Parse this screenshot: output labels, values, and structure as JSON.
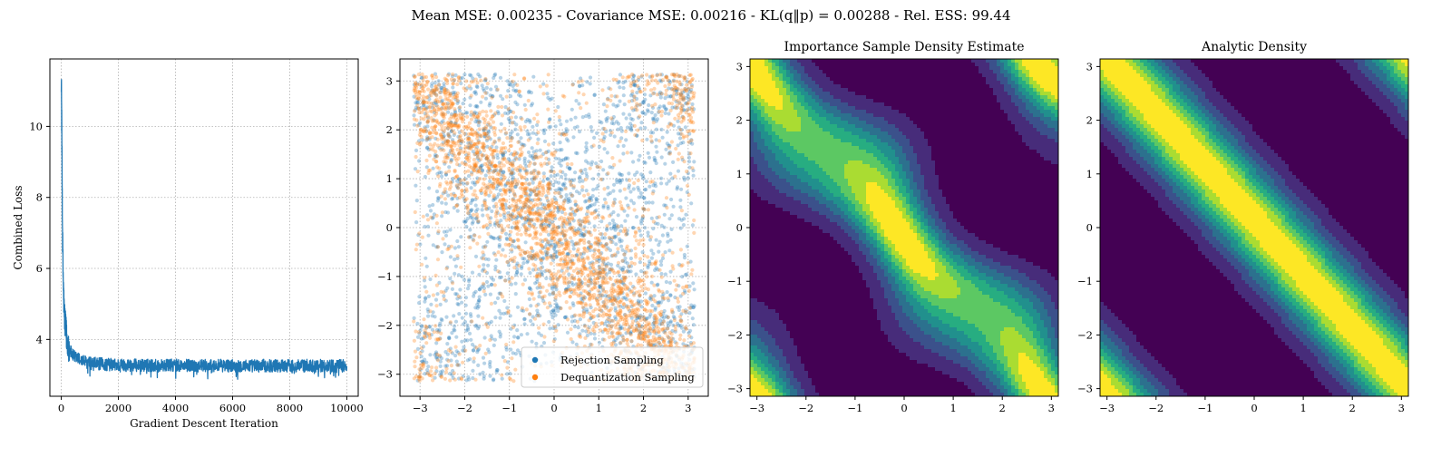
{
  "suptitle": "Mean MSE: 0.00235 - Covariance MSE: 0.00216 - KL(q‖p) = 0.00288 - Rel. ESS: 99.44",
  "colors": {
    "loss_line": "#1f77b4",
    "rejection": "#1f77b4",
    "dequantization": "#ff7f0e",
    "viridis_levels": [
      "#440154",
      "#472c7a",
      "#3b518b",
      "#2c718e",
      "#21908d",
      "#27ad81",
      "#5cc863",
      "#aadc32",
      "#fde725"
    ],
    "grid": "#b0b0b0"
  },
  "chart_data": [
    {
      "type": "line",
      "title": "",
      "xlabel": "Gradient Descent Iteration",
      "ylabel": "Combined Loss",
      "xlim": [
        -400,
        10400
      ],
      "ylim": [
        2.4,
        11.9
      ],
      "xticks": [
        0,
        2000,
        4000,
        6000,
        8000,
        10000
      ],
      "xtick_labels": [
        "0",
        "2000",
        "4000",
        "6000",
        "8000",
        "10000"
      ],
      "yticks": [
        4,
        6,
        8,
        10
      ],
      "ytick_labels": [
        "4",
        "6",
        "8",
        "10"
      ],
      "grid": true,
      "series": [
        {
          "x": [
            0,
            20,
            40,
            60,
            80,
            100,
            150,
            200,
            300,
            400,
            600,
            800,
            1000,
            1500,
            2000,
            3000,
            4000,
            5000,
            6000,
            7000,
            8000,
            9000,
            10000
          ],
          "y": [
            11.4,
            9.6,
            7.2,
            6.0,
            5.3,
            4.8,
            4.3,
            4.0,
            3.7,
            3.55,
            3.45,
            3.38,
            3.33,
            3.3,
            3.28,
            3.27,
            3.27,
            3.26,
            3.26,
            3.26,
            3.26,
            3.26,
            3.26
          ],
          "noise_band": 0.18
        }
      ]
    },
    {
      "type": "scatter",
      "title": "",
      "xlim": [
        -3.45,
        3.45
      ],
      "ylim": [
        -3.45,
        3.45
      ],
      "xticks": [
        -3,
        -2,
        -1,
        0,
        1,
        2,
        3
      ],
      "xtick_labels": [
        "−3",
        "−2",
        "−1",
        "0",
        "1",
        "2",
        "3"
      ],
      "yticks": [
        -3,
        -2,
        -1,
        0,
        1,
        2,
        3
      ],
      "ytick_labels": [
        "−3",
        "−2",
        "−1",
        "0",
        "1",
        "2",
        "3"
      ],
      "grid": true,
      "legend_position": "lower-right",
      "series": [
        {
          "name": "Rejection Sampling",
          "color": "#1f77b4",
          "count": 2200,
          "density": "diagonal bands, nearly uniform"
        },
        {
          "name": "Dequantization Sampling",
          "color": "#ff7f0e",
          "count": 2600,
          "density": "concentrated on anti-diagonal bands"
        }
      ]
    },
    {
      "type": "heatmap",
      "title": "Importance Sample Density Estimate",
      "xlim": [
        -3.14159,
        3.14159
      ],
      "ylim": [
        -3.14159,
        3.14159
      ],
      "xticks": [
        -3,
        -2,
        -1,
        0,
        1,
        2,
        3
      ],
      "xtick_labels": [
        "−3",
        "−2",
        "−1",
        "0",
        "1",
        "2",
        "3"
      ],
      "yticks": [
        -3,
        -2,
        -1,
        0,
        1,
        2,
        3
      ],
      "ytick_labels": [
        "−3",
        "−2",
        "−1",
        "0",
        "1",
        "2",
        "3"
      ],
      "levels": 8,
      "density": "estimated, wobbly anti-diagonal bands"
    },
    {
      "type": "heatmap",
      "title": "Analytic Density",
      "xlim": [
        -3.14159,
        3.14159
      ],
      "ylim": [
        -3.14159,
        3.14159
      ],
      "xticks": [
        -3,
        -2,
        -1,
        0,
        1,
        2,
        3
      ],
      "xtick_labels": [
        "−3",
        "−2",
        "−1",
        "0",
        "1",
        "2",
        "3"
      ],
      "yticks": [
        -3,
        -2,
        -1,
        0,
        1,
        2,
        3
      ],
      "ytick_labels": [
        "−3",
        "−2",
        "−1",
        "0",
        "1",
        "2",
        "3"
      ],
      "levels": 8,
      "density": "periodic function of x + y"
    }
  ]
}
